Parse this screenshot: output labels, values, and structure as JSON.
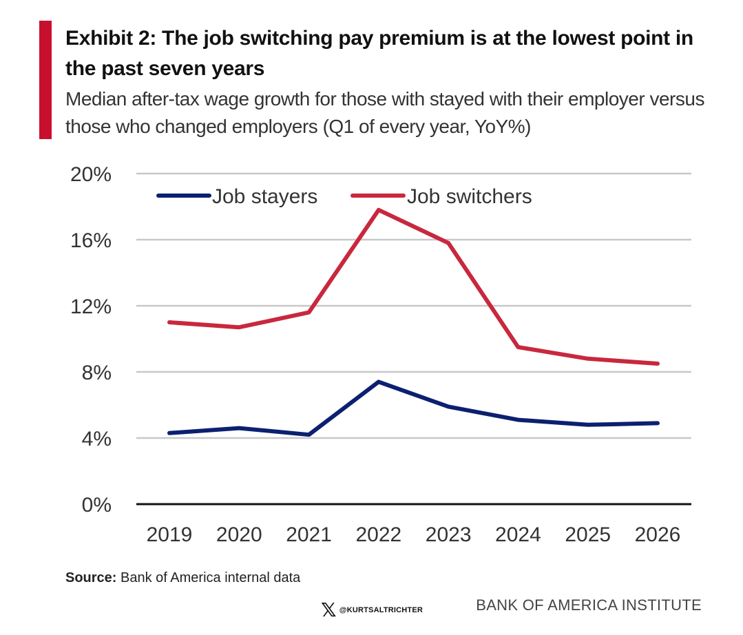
{
  "header": {
    "title": "Exhibit 2: The job switching pay premium is at the lowest point in the past seven years",
    "subtitle": "Median after-tax wage growth for those with stayed with their employer versus those who changed employers (Q1 of every year, YoY%)"
  },
  "footer": {
    "source_label": "Source:",
    "source_text": "Bank of America internal data",
    "handle": "@KURTSALTRICHTER",
    "brand": "BANK OF AMERICA INSTITUTE",
    "logo_icon": "x-logo-icon"
  },
  "colors": {
    "accent": "#c8102e",
    "stayers": "#0c2070",
    "switchers": "#c8283e",
    "grid": "#c8c8c8"
  },
  "chart_data": {
    "type": "line",
    "title": "Exhibit 2: The job switching pay premium is at the lowest point in the past seven years",
    "subtitle": "Median after-tax wage growth for those with stayed with their employer versus those who changed employers (Q1 of every year, YoY%)",
    "x": [
      "2019",
      "2020",
      "2021",
      "2022",
      "2023",
      "2024",
      "2025",
      "2026"
    ],
    "series": [
      {
        "name": "Job stayers",
        "values": [
          4.3,
          4.6,
          4.2,
          7.4,
          5.9,
          5.1,
          4.8,
          4.9
        ]
      },
      {
        "name": "Job switchers",
        "values": [
          11.0,
          10.7,
          11.6,
          17.8,
          15.8,
          9.5,
          8.8,
          8.5
        ]
      }
    ],
    "ylim": [
      0,
      20
    ],
    "yticks": [
      0,
      4,
      8,
      12,
      16,
      20
    ],
    "ytick_labels": [
      "0%",
      "4%",
      "8%",
      "12%",
      "16%",
      "20%"
    ],
    "xlabel": "",
    "ylabel": "",
    "grid": true,
    "legend": "top-left"
  }
}
